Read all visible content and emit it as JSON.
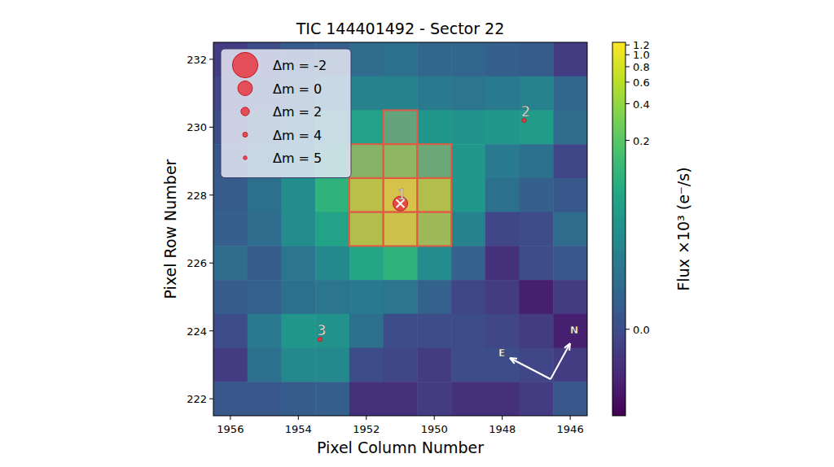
{
  "chart_data": {
    "type": "heatmap",
    "title": "TIC 144401492 - Sector 22",
    "x_label": "Pixel Column Number",
    "y_label": "Pixel Row Number",
    "xlim": [
      1956.5,
      1945.5
    ],
    "ylim": [
      221.5,
      232.5
    ],
    "xticks": [
      1956,
      1954,
      1952,
      1950,
      1948,
      1946
    ],
    "yticks": [
      222,
      224,
      226,
      228,
      230,
      232
    ],
    "columns": [
      1956,
      1955,
      1954,
      1953,
      1952,
      1951,
      1950,
      1949,
      1948,
      1947,
      1946
    ],
    "rows": [
      232,
      231,
      230,
      229,
      228,
      227,
      226,
      225,
      224,
      223,
      222
    ],
    "values": [
      [
        -0.002,
        0.0,
        0.003,
        0.004,
        0.008,
        0.01,
        0.006,
        0.006,
        0.004,
        0.003,
        -0.002
      ],
      [
        -0.001,
        0.002,
        0.006,
        0.012,
        0.02,
        0.02,
        0.015,
        0.012,
        0.015,
        0.02,
        0.006
      ],
      [
        0.0,
        0.005,
        0.012,
        0.03,
        0.06,
        0.09,
        0.04,
        0.035,
        0.04,
        0.05,
        0.008
      ],
      [
        0.002,
        0.008,
        0.02,
        0.05,
        0.25,
        0.3,
        0.12,
        0.04,
        0.015,
        0.01,
        -0.001
      ],
      [
        0.003,
        0.01,
        0.03,
        0.1,
        0.7,
        1.2,
        0.6,
        0.04,
        0.01,
        0.004,
        0.002
      ],
      [
        0.004,
        0.008,
        0.03,
        0.06,
        0.6,
        1.0,
        0.4,
        0.02,
        -0.001,
        0.0,
        0.008
      ],
      [
        0.008,
        0.003,
        0.012,
        0.025,
        0.07,
        0.1,
        0.03,
        0.005,
        -0.003,
        0.0,
        0.002
      ],
      [
        0.003,
        0.005,
        0.01,
        0.012,
        0.015,
        0.012,
        0.005,
        -0.001,
        -0.002,
        -0.004,
        -0.002
      ],
      [
        0.0,
        0.015,
        0.04,
        0.035,
        0.01,
        0.0,
        0.0,
        0.0,
        -0.001,
        -0.002,
        -0.004
      ],
      [
        -0.002,
        0.01,
        0.025,
        0.025,
        0.0,
        -0.001,
        -0.002,
        0.0,
        0.0,
        -0.001,
        -0.002
      ],
      [
        0.002,
        0.002,
        0.003,
        0.004,
        -0.003,
        -0.003,
        -0.002,
        -0.003,
        -0.003,
        -0.002,
        0.002
      ]
    ],
    "colorbar": {
      "label": "Flux ×10³ (e⁻/s)",
      "range": [
        -0.005,
        1.26
      ],
      "ticks": [
        {
          "value": 0,
          "label": "0.0"
        },
        0.2,
        0.4,
        0.6,
        0.8,
        {
          "value": 1,
          "label": "1.0"
        },
        1.2
      ]
    },
    "aperture": [
      [
        1951,
        230
      ],
      [
        1952,
        229
      ],
      [
        1951,
        229
      ],
      [
        1950,
        229
      ],
      [
        1952,
        228
      ],
      [
        1951,
        228
      ],
      [
        1950,
        228
      ],
      [
        1952,
        227
      ],
      [
        1951,
        227
      ],
      [
        1950,
        227
      ]
    ],
    "stars": [
      {
        "label": "1",
        "column": 1951.0,
        "row": 227.75,
        "dm": 0
      },
      {
        "label": "2",
        "column": 1947.36,
        "row": 230.2,
        "dm": 4.5
      },
      {
        "label": "3",
        "column": 1953.36,
        "row": 223.75,
        "dm": 4.5
      }
    ],
    "legend": "upper left",
    "legend_entries": [
      {
        "value": -2,
        "label": "Δm = -2"
      },
      {
        "value": 0,
        "label": "Δm = 0"
      },
      {
        "value": 2,
        "label": "Δm = 2"
      },
      {
        "value": 4,
        "label": "Δm = 4"
      },
      {
        "value": 5,
        "label": "Δm = 5"
      }
    ],
    "compass": {
      "north": "N",
      "east": "E"
    }
  }
}
